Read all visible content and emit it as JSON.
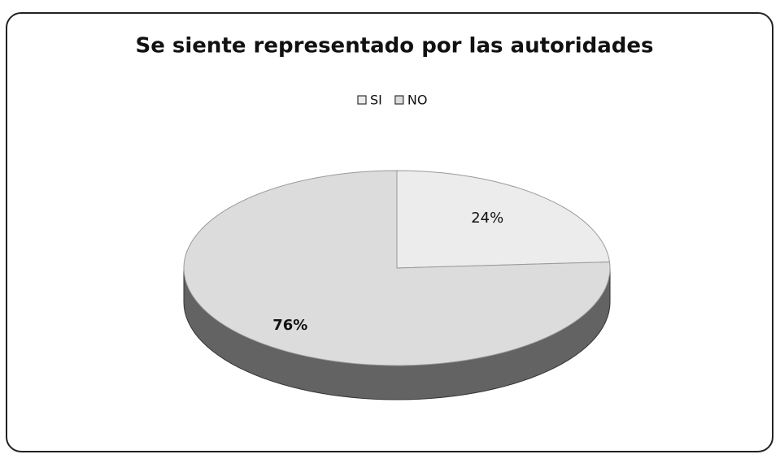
{
  "chart_data": {
    "type": "pie3d",
    "title": "Se siente representado por las autoridades",
    "categories": [
      "SI",
      "NO"
    ],
    "values": [
      24,
      76
    ],
    "value_labels": [
      "24%",
      "76%"
    ],
    "colors": [
      "#ececec",
      "#dcdcdc"
    ],
    "legend": "top"
  }
}
